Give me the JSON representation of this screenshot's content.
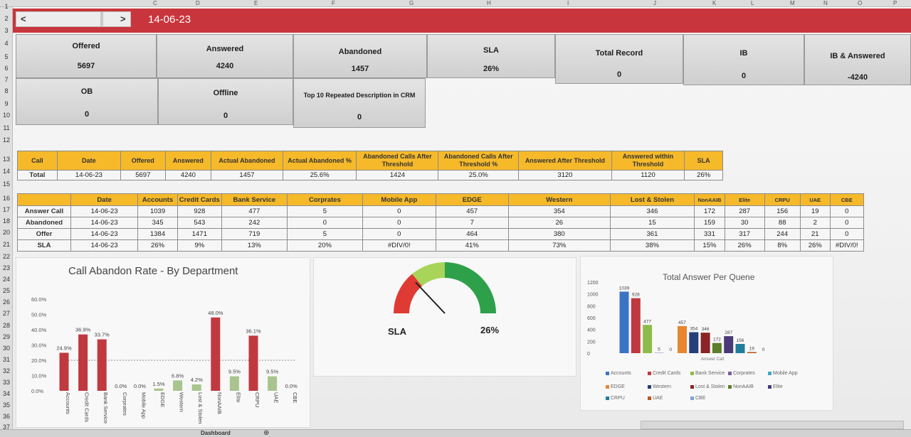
{
  "columns": [
    "C",
    "D",
    "E",
    "F",
    "G",
    "H",
    "I",
    "J",
    "K",
    "L",
    "M",
    "N",
    "O",
    "P"
  ],
  "rows": [
    "1",
    "2",
    "3",
    "4",
    "5",
    "6",
    "7",
    "8",
    "9",
    "10",
    "11",
    "12",
    "13",
    "14",
    "15",
    "16",
    "17",
    "18",
    "20",
    "21",
    "22",
    "23",
    "24",
    "25",
    "26",
    "27",
    "28",
    "29",
    "30",
    "31",
    "32",
    "33",
    "34",
    "35",
    "36",
    "37"
  ],
  "banner": {
    "prev": "<",
    "next": ">",
    "date": "14-06-23"
  },
  "kpis": [
    {
      "label": "Offered",
      "value": "5697"
    },
    {
      "label": "Answered",
      "value": "4240"
    },
    {
      "label": "Abandoned",
      "value": "1457"
    },
    {
      "label": "SLA",
      "value": "26%"
    },
    {
      "label": "Total Record",
      "value": "0"
    },
    {
      "label": "IB",
      "value": "0"
    },
    {
      "label": "IB & Answered",
      "value": "-4240"
    },
    {
      "label": "OB",
      "value": "0"
    },
    {
      "label": "Offline",
      "value": "0"
    },
    {
      "label": "Top 10 Repeated Description in CRM",
      "value": "0"
    }
  ],
  "summary_table": {
    "headers": [
      "Call",
      "Date",
      "Offered",
      "Answered",
      "Actual Abandoned",
      "Actual Abandoned %",
      "Abandoned Calls After Threshold",
      "Abandoned Calls After Threshold %",
      "Answered After Threshold",
      "Answered within Threshold",
      "SLA"
    ],
    "row": [
      "Total",
      "14-06-23",
      "5697",
      "4240",
      "1457",
      "25.6%",
      "1424",
      "25.0%",
      "3120",
      "1120",
      "26%"
    ]
  },
  "dept_table": {
    "headers": [
      "",
      "Date",
      "Accounts",
      "Credit Cards",
      "Bank Service",
      "Corprates",
      "Mobile App",
      "EDGE",
      "Western",
      "Lost & Stolen",
      "NonAAIB",
      "Elite",
      "CRPU",
      "UAE",
      "CBE"
    ],
    "rows": [
      [
        "Answer Call",
        "14-06-23",
        "1039",
        "928",
        "477",
        "5",
        "0",
        "457",
        "354",
        "346",
        "172",
        "287",
        "156",
        "19",
        "0"
      ],
      [
        "Abandoned",
        "14-06-23",
        "345",
        "543",
        "242",
        "0",
        "0",
        "7",
        "26",
        "15",
        "159",
        "30",
        "88",
        "2",
        "0"
      ],
      [
        "Offer",
        "14-06-23",
        "1384",
        "1471",
        "719",
        "5",
        "0",
        "464",
        "380",
        "361",
        "331",
        "317",
        "244",
        "21",
        "0"
      ],
      [
        "SLA",
        "14-06-23",
        "26%",
        "9%",
        "13%",
        "20%",
        "#DIV/0!",
        "41%",
        "73%",
        "38%",
        "15%",
        "26%",
        "8%",
        "26%",
        "#DIV/0!"
      ]
    ]
  },
  "gauge": {
    "label": "SLA",
    "value_text": "26%",
    "value": 26,
    "max": 100
  },
  "sheet_tab": "Dashboard",
  "chart_data": [
    {
      "type": "bar",
      "title": "Call Abandon Rate - By Department",
      "categories": [
        "Accounts",
        "Credit Cards",
        "Bank Service",
        "Corprates",
        "Mobile App",
        "EDGE",
        "Western",
        "Lost & Stolen",
        "NonAAIB",
        "Elite",
        "CRPU",
        "UAE",
        "CBE"
      ],
      "values": [
        24.9,
        36.9,
        33.7,
        0.0,
        0.0,
        1.5,
        6.8,
        4.2,
        48.0,
        9.5,
        36.1,
        9.5,
        0.0
      ],
      "labels": [
        "24.9%",
        "36.9%",
        "33.7%",
        "0.0%",
        "0.0%",
        "1.5%",
        "6.8%",
        "4.2%",
        "48.0%",
        "9.5%",
        "36.1%",
        "9.5%",
        "0.0%"
      ],
      "yticks": [
        "0.0%",
        "10.0%",
        "20.0%",
        "30.0%",
        "40.0%",
        "50.0%",
        "60.0%"
      ],
      "ylim": [
        0,
        60
      ],
      "threshold": 20,
      "colors": {
        "high": "#c0393f",
        "low": "#a9c48f"
      }
    },
    {
      "type": "bar",
      "title": "Total Answer Per Quene",
      "xlabel": "Answer Call",
      "categories": [
        "Accounts",
        "Credit Cards",
        "Bank Service",
        "Corprates",
        "Mobile App",
        "EDGE",
        "Western",
        "Lost & Stolen",
        "NonAAIB",
        "Elite",
        "CRPU",
        "UAE",
        "CBE"
      ],
      "values": [
        1039,
        928,
        477,
        5,
        0,
        457,
        354,
        346,
        172,
        287,
        156,
        19,
        0
      ],
      "yticks": [
        "0",
        "200",
        "400",
        "600",
        "800",
        "1000",
        "1200"
      ],
      "ylim": [
        0,
        1200
      ],
      "colors": [
        "#3b73c4",
        "#c0393f",
        "#8dbb4a",
        "#7b5aa6",
        "#3fa9c9",
        "#e7862f",
        "#243f7a",
        "#8b2327",
        "#5b7f2a",
        "#4a3a78",
        "#1f7e99",
        "#b35a1c",
        "#7fa4d9"
      ]
    }
  ]
}
